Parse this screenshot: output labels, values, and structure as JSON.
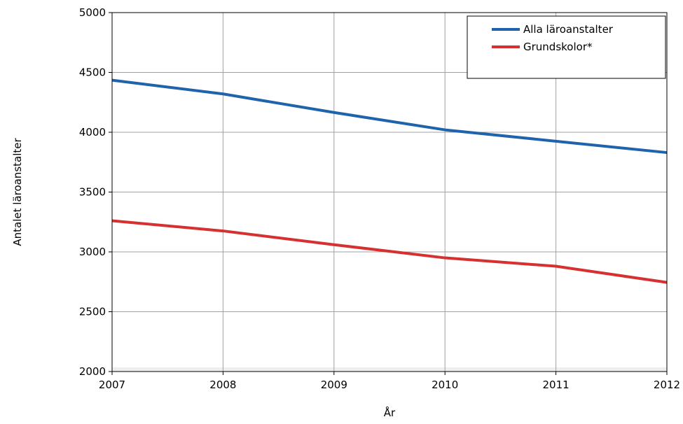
{
  "chart_data": {
    "type": "line",
    "title": "",
    "xlabel": "År",
    "ylabel": "Antalet läroanstalter",
    "x": [
      2007,
      2008,
      2009,
      2010,
      2011,
      2012
    ],
    "xticks": [
      "2007",
      "2008",
      "2009",
      "2010",
      "2011",
      "2012"
    ],
    "yticks": [
      "2000",
      "2500",
      "3000",
      "3500",
      "4000",
      "4500",
      "5000"
    ],
    "xlim": [
      2007,
      2012
    ],
    "ylim": [
      2000,
      5000
    ],
    "grid": true,
    "legend_position": "top-right",
    "series": [
      {
        "name": "Alla läroanstalter",
        "color": "#1f63ac",
        "values": [
          4435,
          4320,
          4165,
          4020,
          3925,
          3830
        ]
      },
      {
        "name": "Grundskolor*",
        "color": "#d63030",
        "values": [
          3260,
          3175,
          3060,
          2950,
          2880,
          2745
        ]
      }
    ]
  }
}
